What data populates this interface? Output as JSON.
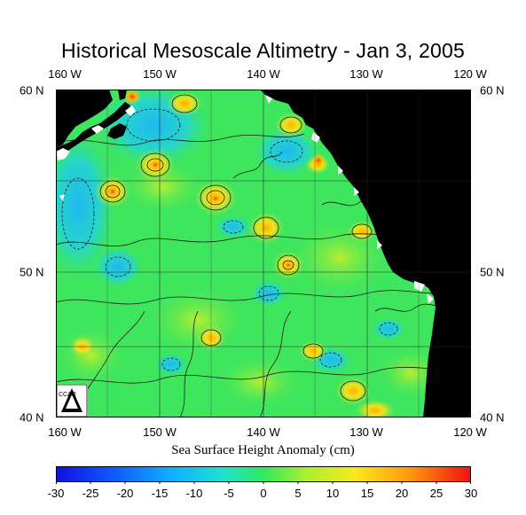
{
  "title": "Historical Mesoscale Altimetry - Jan 3, 2005",
  "lon_labels": [
    "160 W",
    "150 W",
    "140 W",
    "130 W",
    "120 W"
  ],
  "lat_labels": [
    "60 N",
    "50 N",
    "40 N"
  ],
  "colorbar": {
    "label": "Sea Surface Height Anomaly (cm)",
    "ticks": [
      "-30",
      "-25",
      "-20",
      "-15",
      "-10",
      "-5",
      "0",
      "5",
      "10",
      "15",
      "20",
      "25",
      "30"
    ],
    "min": -30,
    "max": 30
  },
  "map_extent": {
    "lon_min": -160,
    "lon_max": -120,
    "lat_min": 40,
    "lat_max": 60
  },
  "logo_text": "CCAR",
  "colors": {
    "land": "#000000",
    "ocean_base": "#3ee65e",
    "contour": "#1a1a1a"
  }
}
